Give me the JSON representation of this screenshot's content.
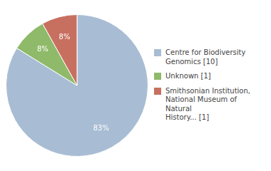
{
  "chart_data": {
    "type": "pie",
    "categories": [
      "Centre for Biodiversity\nGenomics [10]",
      "Unknown [1]",
      "Smithsonian Institution,\nNational Museum of Natural\nHistory... [1]"
    ],
    "values": [
      83,
      8,
      8
    ],
    "value_labels": [
      "83%",
      "8%",
      "8%"
    ],
    "colors": [
      "#a8bdd4",
      "#8fba6a",
      "#c87060"
    ],
    "data_labels": true,
    "legend": "right"
  }
}
